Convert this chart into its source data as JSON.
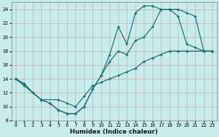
{
  "xlabel": "Humidex (Indice chaleur)",
  "bg_color": "#c8ecec",
  "grid_color": "#c4a8a8",
  "line_color": "#1a6b6b",
  "xlim": [
    -0.5,
    23.5
  ],
  "ylim": [
    8,
    25
  ],
  "xticks": [
    0,
    1,
    2,
    3,
    4,
    5,
    6,
    7,
    8,
    9,
    10,
    11,
    12,
    13,
    14,
    15,
    16,
    17,
    18,
    19,
    20,
    21,
    22,
    23
  ],
  "yticks": [
    8,
    10,
    12,
    14,
    16,
    18,
    20,
    22,
    24
  ],
  "line1_x": [
    0,
    1,
    2,
    3,
    4,
    5,
    6,
    7,
    8,
    9,
    10,
    11,
    12,
    13,
    14,
    15,
    16,
    17,
    18,
    19,
    20,
    21,
    22,
    23
  ],
  "line1_y": [
    14,
    13.3,
    12,
    11,
    10.5,
    9.5,
    9.0,
    9.0,
    10.0,
    12.5,
    14.5,
    17.5,
    21.5,
    19.0,
    23.5,
    24.5,
    24.5,
    24.0,
    24.0,
    23.0,
    19.0,
    18.5,
    18.0,
    18.0
  ],
  "line2_x": [
    0,
    1,
    2,
    3,
    4,
    5,
    6,
    7,
    8,
    9,
    10,
    11,
    12,
    13,
    14,
    15,
    16,
    17,
    18,
    19,
    20,
    21,
    22,
    23
  ],
  "line2_y": [
    14,
    13.3,
    12,
    11,
    10.5,
    9.5,
    9.0,
    9.0,
    10.0,
    12.5,
    14.5,
    16.5,
    18.0,
    17.5,
    19.5,
    20.0,
    21.5,
    24.0,
    24.0,
    24.0,
    23.5,
    23.0,
    18.0,
    18.0
  ],
  "line3_x": [
    0,
    1,
    3,
    5,
    6,
    7,
    8,
    9,
    10,
    11,
    12,
    13,
    14,
    15,
    16,
    17,
    18,
    19,
    20,
    23
  ],
  "line3_y": [
    14,
    13.0,
    11.0,
    11.0,
    10.5,
    10.0,
    11.5,
    13.0,
    13.5,
    14.0,
    14.5,
    15.0,
    15.5,
    16.5,
    17.0,
    17.5,
    18.0,
    18.0,
    18.0,
    18.0
  ]
}
